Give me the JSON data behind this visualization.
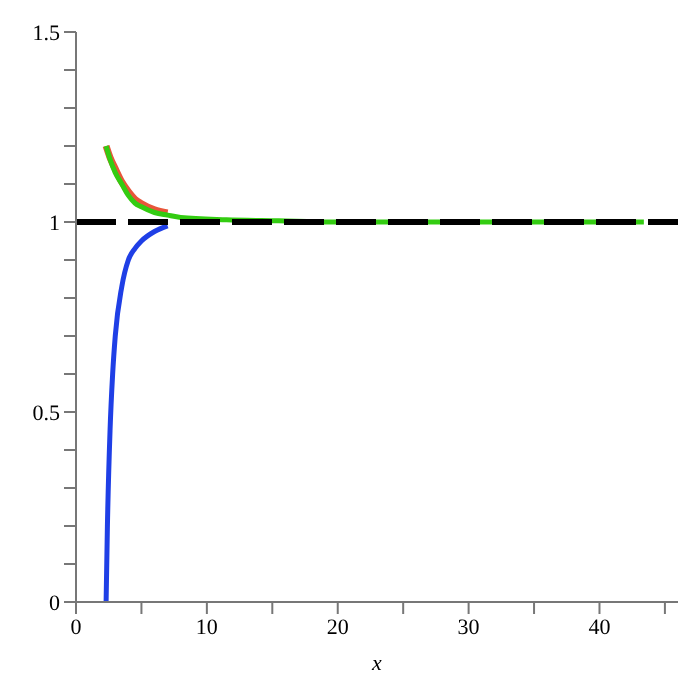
{
  "chart_data": {
    "type": "line",
    "xlabel": "x",
    "series": [
      {
        "color": "#1f3fe6",
        "x": [
          2.3,
          2.4,
          2.6,
          2.8,
          3,
          3.5,
          4,
          4.5,
          5,
          6,
          7
        ],
        "values": [
          0,
          0.2,
          0.45,
          0.6,
          0.7,
          0.83,
          0.9,
          0.93,
          0.95,
          0.975,
          0.99
        ]
      },
      {
        "color": "#e8553a",
        "x": [
          2.3,
          2.6,
          3,
          3.5,
          4,
          4.5,
          5,
          6,
          7
        ],
        "values": [
          1.2,
          1.17,
          1.14,
          1.105,
          1.08,
          1.06,
          1.048,
          1.032,
          1.024
        ]
      },
      {
        "color": "#33cc11",
        "x": [
          2.3,
          2.6,
          3,
          3.5,
          4,
          4.5,
          5,
          6,
          7,
          8,
          11.5,
          15.5,
          19.47,
          23.46,
          27.44,
          31.43,
          35.42,
          39.4,
          43.39
        ],
        "values": [
          1.2,
          1.165,
          1.13,
          1.1,
          1.07,
          1.05,
          1.04,
          1.025,
          1.018,
          1.012,
          1.006,
          1.003,
          1,
          1,
          1,
          1,
          1,
          1,
          1
        ]
      }
    ],
    "xlim": [
      0,
      46
    ],
    "xticks": [
      0,
      {
        "value": 5,
        "label": null
      },
      10,
      {
        "value": 15,
        "label": null
      },
      20,
      {
        "value": 25,
        "label": null
      },
      30,
      {
        "value": 35,
        "label": null
      },
      40,
      {
        "value": 45,
        "label": null
      }
    ],
    "ylim": [
      0,
      1.5
    ],
    "yticks": [
      0,
      {
        "value": 0.1,
        "label": null
      },
      {
        "value": 0.2,
        "label": null
      },
      {
        "value": 0.3,
        "label": null
      },
      {
        "value": 0.4,
        "label": null
      },
      0.5,
      {
        "value": 0.6,
        "label": null
      },
      {
        "value": 0.7,
        "label": null
      },
      {
        "value": 0.8,
        "label": null
      },
      {
        "value": 0.9,
        "label": null
      },
      1,
      {
        "value": 1.1,
        "label": null
      },
      {
        "value": 1.2,
        "label": null
      },
      {
        "value": 1.3,
        "label": null
      },
      {
        "value": 1.4,
        "label": null
      },
      1.5
    ],
    "ref_lines": [
      {
        "axis": "y",
        "value": 1,
        "color": "#000000",
        "line_style": "dashed"
      }
    ],
    "grid": false,
    "legend": false,
    "marker": "none",
    "line_style": "solid"
  }
}
